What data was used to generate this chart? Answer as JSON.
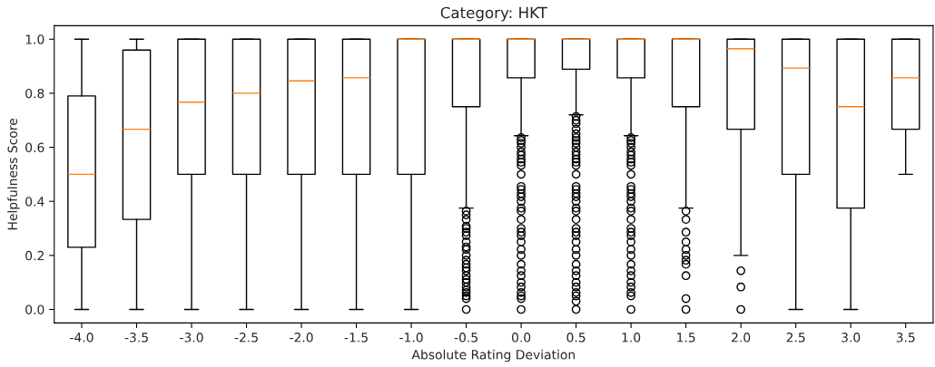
{
  "chart_data": {
    "type": "box",
    "title": "Category: HKT",
    "xlabel": "Absolute Rating Deviation",
    "ylabel": "Helpfulness Score",
    "categories": [
      "-4.0",
      "-3.5",
      "-3.0",
      "-2.5",
      "-2.0",
      "-1.5",
      "-1.0",
      "-0.5",
      "0.0",
      "0.5",
      "1.0",
      "1.5",
      "2.0",
      "2.5",
      "3.0",
      "3.5"
    ],
    "boxes": [
      {
        "low": 0,
        "q1": 0.23,
        "median": 0.5,
        "q3": 0.79,
        "high": 1
      },
      {
        "low": 0,
        "q1": 0.333,
        "median": 0.667,
        "q3": 0.96,
        "high": 1
      },
      {
        "low": 0,
        "q1": 0.5,
        "median": 0.767,
        "q3": 1,
        "high": 1
      },
      {
        "low": 0,
        "q1": 0.5,
        "median": 0.8,
        "q3": 1,
        "high": 1
      },
      {
        "low": 0,
        "q1": 0.5,
        "median": 0.846,
        "q3": 1,
        "high": 1
      },
      {
        "low": 0,
        "q1": 0.5,
        "median": 0.857,
        "q3": 1,
        "high": 1
      },
      {
        "low": 0,
        "q1": 0.5,
        "median": 1,
        "q3": 1,
        "high": 1
      },
      {
        "low": 0.375,
        "q1": 0.75,
        "median": 1,
        "q3": 1,
        "high": 1,
        "outliers": [
          0,
          0.04,
          0.05,
          0.0625,
          0.071,
          0.083,
          0.1,
          0.111,
          0.125,
          0.143,
          0.154,
          0.167,
          0.182,
          0.2,
          0.222,
          0.231,
          0.25,
          0.273,
          0.286,
          0.3,
          0.308,
          0.333,
          0.35,
          0.364
        ]
      },
      {
        "low": 0.643,
        "q1": 0.857,
        "median": 1,
        "q3": 1,
        "high": 1,
        "outliers": [
          0,
          0.04,
          0.05,
          0.0625,
          0.083,
          0.1,
          0.125,
          0.143,
          0.167,
          0.2,
          0.222,
          0.25,
          0.273,
          0.286,
          0.3,
          0.333,
          0.364,
          0.375,
          0.4,
          0.417,
          0.429,
          0.444,
          0.455,
          0.5,
          0.533,
          0.545,
          0.556,
          0.571,
          0.583,
          0.6,
          0.615,
          0.625,
          0.636
        ]
      },
      {
        "low": 0.72,
        "q1": 0.889,
        "median": 1,
        "q3": 1,
        "high": 1,
        "outliers": [
          0,
          0.03,
          0.05,
          0.0625,
          0.083,
          0.1,
          0.125,
          0.143,
          0.167,
          0.2,
          0.222,
          0.25,
          0.273,
          0.286,
          0.3,
          0.333,
          0.364,
          0.375,
          0.4,
          0.417,
          0.429,
          0.444,
          0.455,
          0.5,
          0.533,
          0.545,
          0.556,
          0.571,
          0.583,
          0.6,
          0.615,
          0.625,
          0.636,
          0.65,
          0.667,
          0.688,
          0.7,
          0.714
        ]
      },
      {
        "low": 0.643,
        "q1": 0.857,
        "median": 1,
        "q3": 1,
        "high": 1,
        "outliers": [
          0,
          0.05,
          0.0625,
          0.083,
          0.1,
          0.125,
          0.143,
          0.167,
          0.2,
          0.222,
          0.25,
          0.273,
          0.286,
          0.3,
          0.333,
          0.364,
          0.375,
          0.4,
          0.417,
          0.429,
          0.444,
          0.455,
          0.5,
          0.533,
          0.545,
          0.556,
          0.571,
          0.583,
          0.6,
          0.615,
          0.625,
          0.636
        ]
      },
      {
        "low": 0.375,
        "q1": 0.75,
        "median": 1,
        "q3": 1,
        "high": 1,
        "outliers": [
          0,
          0.04,
          0.125,
          0.167,
          0.182,
          0.2,
          0.222,
          0.25,
          0.286,
          0.333,
          0.364
        ]
      },
      {
        "low": 0.2,
        "q1": 0.667,
        "median": 0.965,
        "q3": 1,
        "high": 1,
        "outliers": [
          0,
          0.083,
          0.143
        ]
      },
      {
        "low": 0,
        "q1": 0.5,
        "median": 0.893,
        "q3": 1,
        "high": 1
      },
      {
        "low": 0,
        "q1": 0.375,
        "median": 0.75,
        "q3": 1,
        "high": 1
      },
      {
        "low": 0.5,
        "q1": 0.667,
        "median": 0.857,
        "q3": 1,
        "high": 1
      }
    ],
    "ylim": [
      -0.05,
      1.05
    ],
    "yticks": [
      {
        "value": 0,
        "label": "0.0"
      },
      {
        "value": 0.2,
        "label": "0.2"
      },
      {
        "value": 0.4,
        "label": "0.4"
      },
      {
        "value": 0.6,
        "label": "0.6"
      },
      {
        "value": 0.8,
        "label": "0.8"
      },
      {
        "value": 1,
        "label": "1.0"
      }
    ],
    "grid": false
  }
}
